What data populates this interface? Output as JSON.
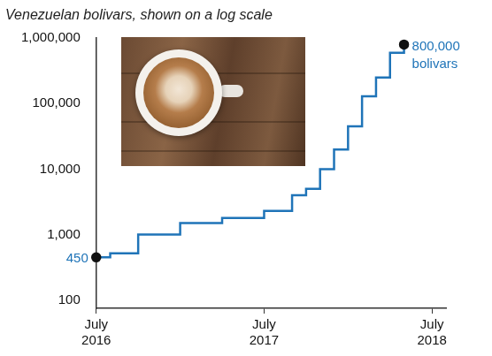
{
  "chart_data": {
    "type": "line",
    "title": "Venezuelan bolivars, shown on a log scale",
    "x": [
      "2016-07",
      "2016-08",
      "2016-10",
      "2017-01",
      "2017-04",
      "2017-07",
      "2017-09",
      "2017-10",
      "2017-11",
      "2017-12",
      "2018-01",
      "2018-02",
      "2018-03",
      "2018-04",
      "2018-05"
    ],
    "values": [
      450,
      520,
      1000,
      1500,
      1800,
      2300,
      4000,
      5000,
      10000,
      20000,
      45000,
      130000,
      250000,
      600000,
      800000
    ],
    "value_labels": [
      "450",
      null,
      null,
      null,
      null,
      null,
      null,
      null,
      null,
      null,
      null,
      null,
      null,
      null,
      "800,000 bolivars"
    ],
    "color": "#1f74b8",
    "line_style": "step",
    "marker": "circle",
    "xlim": [
      "2016-07",
      "2018-08"
    ],
    "xticks": [
      {
        "value": "2016-07",
        "label": "July 2016"
      },
      {
        "value": "2017-07",
        "label": "July 2017"
      },
      {
        "value": "2018-07",
        "label": "July 2018"
      }
    ],
    "ylim": [
      75,
      1000000
    ],
    "yticks": [
      100,
      {
        "value": 1000,
        "label": "1,000"
      },
      {
        "value": 10000,
        "label": "10,000"
      },
      {
        "value": 100000,
        "label": "100,000"
      },
      {
        "value": 1000000,
        "label": "1,000,000"
      }
    ],
    "log": "y",
    "grid": false
  }
}
